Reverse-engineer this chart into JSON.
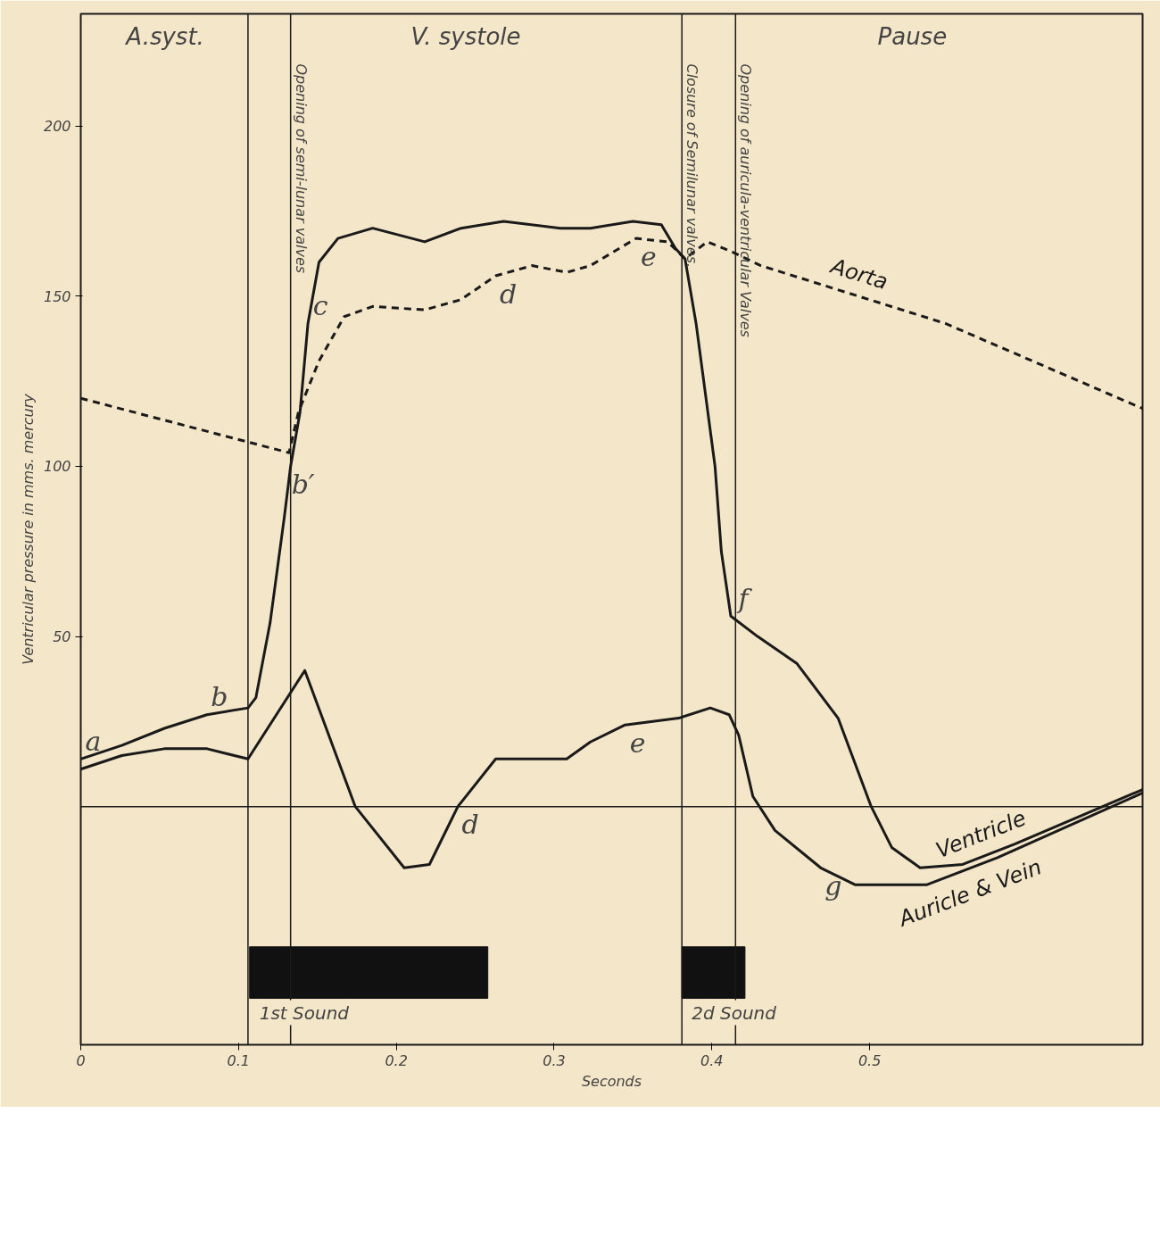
{
  "chart_data": {
    "type": "line",
    "xlabel": "Seconds",
    "ylabel": "Ventricular pressure in mms. mercury",
    "xlim": [
      0,
      0.673
    ],
    "ylim": [
      -70,
      233
    ],
    "xticks": [
      0,
      0.1,
      0.2,
      0.3,
      0.4,
      0.5
    ],
    "yticks": [
      50,
      100,
      150,
      200
    ],
    "series": [
      {
        "name": "Ventricle",
        "color": "#1a1a1a",
        "line_style": "solid",
        "x": [
          0,
          0.026,
          0.053,
          0.08,
          0.106,
          0.111,
          0.12,
          0.129,
          0.133,
          0.139,
          0.144,
          0.151,
          0.163,
          0.185,
          0.218,
          0.241,
          0.268,
          0.304,
          0.323,
          0.35,
          0.368,
          0.377,
          0.383,
          0.39,
          0.402,
          0.406,
          0.412,
          0.429,
          0.454,
          0.48,
          0.501,
          0.514,
          0.532,
          0.559,
          0.592,
          0.673
        ],
        "values": [
          14,
          18,
          23,
          27,
          29,
          32,
          54,
          85,
          100,
          116,
          142,
          160,
          167,
          170,
          166,
          170,
          172,
          170,
          170,
          172,
          171,
          164,
          161,
          142,
          100,
          75,
          56,
          50,
          42,
          26,
          0,
          -12,
          -18,
          -17,
          -11,
          5
        ]
      },
      {
        "name": "Aorta",
        "color": "#1a1a1a",
        "line_style": "dashed",
        "x": [
          0,
          0.132,
          0.138,
          0.151,
          0.167,
          0.185,
          0.218,
          0.241,
          0.263,
          0.286,
          0.308,
          0.323,
          0.352,
          0.372,
          0.383,
          0.397,
          0.413,
          0.431,
          0.548,
          0.673
        ],
        "values": [
          120,
          104,
          116,
          131,
          144,
          147,
          146,
          149,
          156,
          159,
          157,
          159,
          167,
          166,
          161,
          166,
          163,
          159,
          142,
          117
        ]
      },
      {
        "name": "Auricle & Vein",
        "color": "#1a1a1a",
        "line_style": "solid",
        "x": [
          0,
          0.026,
          0.053,
          0.08,
          0.106,
          0.142,
          0.174,
          0.205,
          0.221,
          0.239,
          0.263,
          0.285,
          0.308,
          0.323,
          0.345,
          0.379,
          0.399,
          0.411,
          0.417,
          0.426,
          0.44,
          0.469,
          0.491,
          0.536,
          0.581,
          0.673
        ],
        "values": [
          11,
          15,
          17,
          17,
          14,
          40,
          0,
          -18,
          -17,
          0,
          14,
          14,
          14,
          19,
          24,
          26,
          29,
          27,
          21,
          3,
          -7,
          -18,
          -23,
          -23,
          -15,
          4
        ]
      }
    ],
    "ref_lines": [
      {
        "axis": "x",
        "value": 0.106,
        "label": null
      },
      {
        "axis": "x",
        "value": 0.133,
        "label": "Opening of semi-lunar valves"
      },
      {
        "axis": "x",
        "value": 0.381,
        "label": "Closure of Semilunar valves."
      },
      {
        "axis": "x",
        "value": 0.415,
        "label": "Opening of auricula-ventricular Valves"
      },
      {
        "axis": "y",
        "value": 0,
        "label": null
      }
    ],
    "bands": [
      {
        "axis": "x",
        "from": 0.107,
        "to": 0.258,
        "label": "1st Sound",
        "color": "#111111"
      },
      {
        "axis": "x",
        "from": 0.381,
        "to": 0.421,
        "label": "2d Sound",
        "color": "#111111"
      }
    ],
    "annotations": [
      {
        "text": "a",
        "x": 0,
        "y": 14
      },
      {
        "text": "b",
        "x": 0.08,
        "y": 27
      },
      {
        "text": "b′",
        "x": 0.133,
        "y": 100
      },
      {
        "text": "c",
        "x": 0.144,
        "y": 142
      },
      {
        "text": "d",
        "x": 0.263,
        "y": 156
      },
      {
        "text": "e",
        "x": 0.352,
        "y": 167
      },
      {
        "text": "f",
        "x": 0.412,
        "y": 56
      },
      {
        "text": "e",
        "x": 0.345,
        "y": 24
      },
      {
        "text": "d",
        "x": 0.239,
        "y": 0
      },
      {
        "text": "g",
        "x": 0.469,
        "y": -18
      },
      "A.syst.",
      "V. systole",
      "Pause"
    ]
  }
}
